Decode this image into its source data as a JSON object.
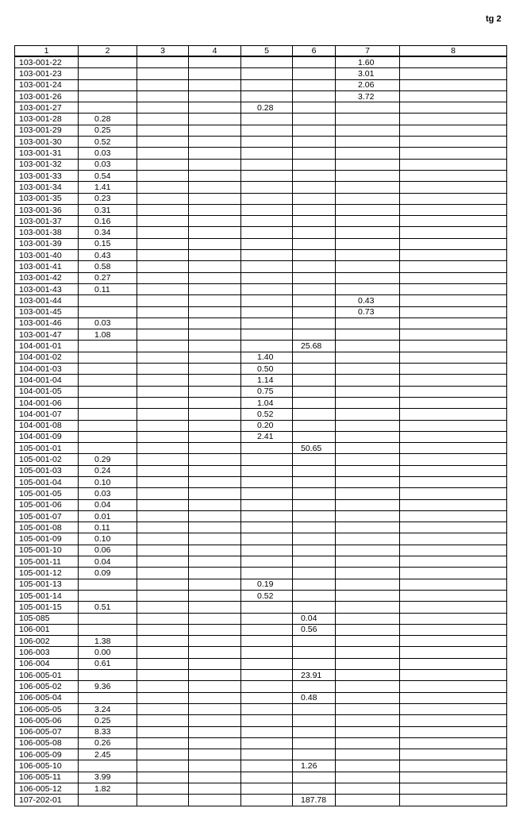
{
  "page_label": "tg 2",
  "table": {
    "headers": [
      "1",
      "2",
      "3",
      "4",
      "5",
      "6",
      "7",
      "8"
    ],
    "rows": [
      [
        "103-001-22",
        "",
        "",
        "",
        "",
        "",
        "1.60",
        ""
      ],
      [
        "103-001-23",
        "",
        "",
        "",
        "",
        "",
        "3.01",
        ""
      ],
      [
        "103-001-24",
        "",
        "",
        "",
        "",
        "",
        "2.06",
        ""
      ],
      [
        "103-001-26",
        "",
        "",
        "",
        "",
        "",
        "3.72",
        ""
      ],
      [
        "103-001-27",
        "",
        "",
        "",
        "0.28",
        "",
        "",
        ""
      ],
      [
        "103-001-28",
        "0.28",
        "",
        "",
        "",
        "",
        "",
        ""
      ],
      [
        "103-001-29",
        "0.25",
        "",
        "",
        "",
        "",
        "",
        ""
      ],
      [
        "103-001-30",
        "0.52",
        "",
        "",
        "",
        "",
        "",
        ""
      ],
      [
        "103-001-31",
        "0.03",
        "",
        "",
        "",
        "",
        "",
        ""
      ],
      [
        "103-001-32",
        "0.03",
        "",
        "",
        "",
        "",
        "",
        ""
      ],
      [
        "103-001-33",
        "0.54",
        "",
        "",
        "",
        "",
        "",
        ""
      ],
      [
        "103-001-34",
        "1.41",
        "",
        "",
        "",
        "",
        "",
        ""
      ],
      [
        "103-001-35",
        "0.23",
        "",
        "",
        "",
        "",
        "",
        ""
      ],
      [
        "103-001-36",
        "0.31",
        "",
        "",
        "",
        "",
        "",
        ""
      ],
      [
        "103-001-37",
        "0.16",
        "",
        "",
        "",
        "",
        "",
        ""
      ],
      [
        "103-001-38",
        "0.34",
        "",
        "",
        "",
        "",
        "",
        ""
      ],
      [
        "103-001-39",
        "0.15",
        "",
        "",
        "",
        "",
        "",
        ""
      ],
      [
        "103-001-40",
        "0.43",
        "",
        "",
        "",
        "",
        "",
        ""
      ],
      [
        "103-001-41",
        "0.58",
        "",
        "",
        "",
        "",
        "",
        ""
      ],
      [
        "103-001-42",
        "0.27",
        "",
        "",
        "",
        "",
        "",
        ""
      ],
      [
        "103-001-43",
        "0.11",
        "",
        "",
        "",
        "",
        "",
        ""
      ],
      [
        "103-001-44",
        "",
        "",
        "",
        "",
        "",
        "0.43",
        ""
      ],
      [
        "103-001-45",
        "",
        "",
        "",
        "",
        "",
        "0.73",
        ""
      ],
      [
        "103-001-46",
        "0.03",
        "",
        "",
        "",
        "",
        "",
        ""
      ],
      [
        "103-001-47",
        "1.08",
        "",
        "",
        "",
        "",
        "",
        ""
      ],
      [
        "104-001-01",
        "",
        "",
        "",
        "",
        "25.68",
        "",
        ""
      ],
      [
        "104-001-02",
        "",
        "",
        "",
        "1.40",
        "",
        "",
        ""
      ],
      [
        "104-001-03",
        "",
        "",
        "",
        "0.50",
        "",
        "",
        ""
      ],
      [
        "104-001-04",
        "",
        "",
        "",
        "1.14",
        "",
        "",
        ""
      ],
      [
        "104-001-05",
        "",
        "",
        "",
        "0.75",
        "",
        "",
        ""
      ],
      [
        "104-001-06",
        "",
        "",
        "",
        "1.04",
        "",
        "",
        ""
      ],
      [
        "104-001-07",
        "",
        "",
        "",
        "0.52",
        "",
        "",
        ""
      ],
      [
        "104-001-08",
        "",
        "",
        "",
        "0.20",
        "",
        "",
        ""
      ],
      [
        "104-001-09",
        "",
        "",
        "",
        "2.41",
        "",
        "",
        ""
      ],
      [
        "105-001-01",
        "",
        "",
        "",
        "",
        "50.65",
        "",
        ""
      ],
      [
        "105-001-02",
        "0.29",
        "",
        "",
        "",
        "",
        "",
        ""
      ],
      [
        "105-001-03",
        "0.24",
        "",
        "",
        "",
        "",
        "",
        ""
      ],
      [
        "105-001-04",
        "0.10",
        "",
        "",
        "",
        "",
        "",
        ""
      ],
      [
        "105-001-05",
        "0.03",
        "",
        "",
        "",
        "",
        "",
        ""
      ],
      [
        "105-001-06",
        "0.04",
        "",
        "",
        "",
        "",
        "",
        ""
      ],
      [
        "105-001-07",
        "0.01",
        "",
        "",
        "",
        "",
        "",
        ""
      ],
      [
        "105-001-08",
        "0.11",
        "",
        "",
        "",
        "",
        "",
        ""
      ],
      [
        "105-001-09",
        "0.10",
        "",
        "",
        "",
        "",
        "",
        ""
      ],
      [
        "105-001-10",
        "0.06",
        "",
        "",
        "",
        "",
        "",
        ""
      ],
      [
        "105-001-11",
        "0.04",
        "",
        "",
        "",
        "",
        "",
        ""
      ],
      [
        "105-001-12",
        "0.09",
        "",
        "",
        "",
        "",
        "",
        ""
      ],
      [
        "105-001-13",
        "",
        "",
        "",
        "0.19",
        "",
        "",
        ""
      ],
      [
        "105-001-14",
        "",
        "",
        "",
        "0.52",
        "",
        "",
        ""
      ],
      [
        "105-001-15",
        "0.51",
        "",
        "",
        "",
        "",
        "",
        ""
      ],
      [
        "105-085",
        "",
        "",
        "",
        "",
        "0.04",
        "",
        ""
      ],
      [
        "106-001",
        "",
        "",
        "",
        "",
        "0.56",
        "",
        ""
      ],
      [
        "106-002",
        "1.38",
        "",
        "",
        "",
        "",
        "",
        ""
      ],
      [
        "106-003",
        "0.00",
        "",
        "",
        "",
        "",
        "",
        ""
      ],
      [
        "106-004",
        "0.61",
        "",
        "",
        "",
        "",
        "",
        ""
      ],
      [
        "106-005-01",
        "",
        "",
        "",
        "",
        "23.91",
        "",
        ""
      ],
      [
        "106-005-02",
        "9.36",
        "",
        "",
        "",
        "",
        "",
        ""
      ],
      [
        "106-005-04",
        "",
        "",
        "",
        "",
        "0.48",
        "",
        ""
      ],
      [
        "106-005-05",
        "3.24",
        "",
        "",
        "",
        "",
        "",
        ""
      ],
      [
        "106-005-06",
        "0.25",
        "",
        "",
        "",
        "",
        "",
        ""
      ],
      [
        "106-005-07",
        "8.33",
        "",
        "",
        "",
        "",
        "",
        ""
      ],
      [
        "106-005-08",
        "0.26",
        "",
        "",
        "",
        "",
        "",
        ""
      ],
      [
        "106-005-09",
        "2.45",
        "",
        "",
        "",
        "",
        "",
        ""
      ],
      [
        "106-005-10",
        "",
        "",
        "",
        "",
        "1.26",
        "",
        ""
      ],
      [
        "106-005-11",
        "3.99",
        "",
        "",
        "",
        "",
        "",
        ""
      ],
      [
        "106-005-12",
        "1.82",
        "",
        "",
        "",
        "",
        "",
        ""
      ],
      [
        "107-202-01",
        "",
        "",
        "",
        "",
        "187.78",
        "",
        ""
      ]
    ]
  }
}
